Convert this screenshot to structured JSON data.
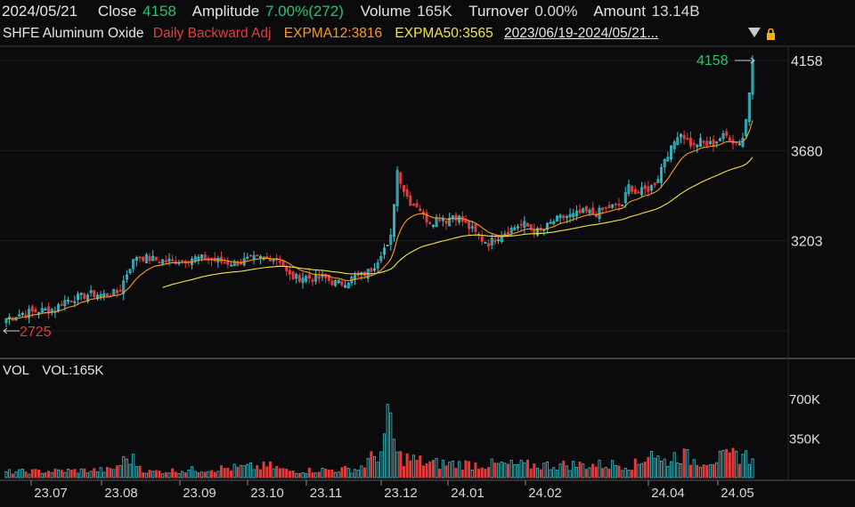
{
  "header": {
    "date": "2024/05/21",
    "close_label": "Close",
    "close_value": "4158",
    "amplitude_label": "Amplitude",
    "amplitude_value": "7.00%(272)",
    "volume_label": "Volume",
    "volume_value": "165K",
    "turnover_label": "Turnover",
    "turnover_value": "0.00%",
    "amount_label": "Amount",
    "amount_value": "13.14B"
  },
  "subheader": {
    "instrument": "SHFE Aluminum Oxide",
    "adjust_mode": "Daily Backward Adj",
    "ema12": "EXPMA12:3816",
    "ema50": "EXPMA50:3565",
    "range": "2023/06/19-2024/05/21..."
  },
  "icons": {
    "dropdown": "triangle-down-icon",
    "lock": "lock-icon"
  },
  "colors": {
    "up": "#3ec6cf",
    "down": "#e53b3b",
    "ema12": "#ff9a1a",
    "ema50": "#f2e640",
    "grid": "#3a3a3a"
  },
  "volume_panel": {
    "title": "VOL",
    "vol_label": "VOL:165K"
  },
  "chart_data": {
    "type": "candlestick",
    "y_ticks": [
      "4158",
      "3680",
      "3203"
    ],
    "vol_ticks": [
      "700K",
      "350K"
    ],
    "x_ticks": [
      "23.07",
      "23.08",
      "23.09",
      "23.10",
      "23.11",
      "23.12",
      "24.01",
      "24.02",
      "24.04",
      "24.05"
    ],
    "high_label": "4158",
    "low_label": "2725",
    "price_range": [
      2725,
      4158
    ],
    "ema12_last": 3816,
    "ema50_last": 3565,
    "close_path": [
      [
        0,
        2790
      ],
      [
        10,
        2820
      ],
      [
        18,
        2830
      ],
      [
        28,
        2840
      ],
      [
        32,
        2880
      ],
      [
        40,
        2900
      ],
      [
        48,
        2920
      ],
      [
        55,
        2915
      ],
      [
        64,
        2930
      ],
      [
        70,
        3060
      ],
      [
        74,
        3120
      ],
      [
        80,
        3110
      ],
      [
        86,
        3100
      ],
      [
        94,
        3095
      ],
      [
        100,
        3100
      ],
      [
        106,
        3110
      ],
      [
        112,
        3110
      ],
      [
        118,
        3100
      ],
      [
        124,
        3090
      ],
      [
        130,
        3080
      ],
      [
        136,
        3100
      ],
      [
        140,
        3105
      ],
      [
        145,
        3110
      ],
      [
        150,
        3115
      ],
      [
        156,
        3100
      ],
      [
        160,
        3020
      ],
      [
        164,
        3005
      ],
      [
        170,
        3010
      ],
      [
        176,
        3000
      ],
      [
        180,
        3010
      ],
      [
        186,
        2980
      ],
      [
        190,
        2975
      ],
      [
        194,
        2990
      ],
      [
        198,
        3010
      ],
      [
        202,
        3020
      ],
      [
        206,
        3040
      ],
      [
        210,
        3080
      ],
      [
        214,
        3160
      ],
      [
        218,
        3170
      ],
      [
        222,
        3580
      ],
      [
        226,
        3470
      ],
      [
        230,
        3400
      ],
      [
        234,
        3390
      ],
      [
        238,
        3320
      ],
      [
        242,
        3300
      ],
      [
        246,
        3330
      ],
      [
        250,
        3310
      ],
      [
        254,
        3340
      ],
      [
        258,
        3320
      ],
      [
        262,
        3280
      ],
      [
        266,
        3250
      ],
      [
        270,
        3210
      ],
      [
        274,
        3190
      ],
      [
        278,
        3215
      ],
      [
        282,
        3240
      ],
      [
        286,
        3260
      ],
      [
        290,
        3280
      ],
      [
        294,
        3290
      ],
      [
        298,
        3270
      ],
      [
        302,
        3250
      ],
      [
        306,
        3265
      ],
      [
        310,
        3300
      ],
      [
        314,
        3320
      ],
      [
        318,
        3330
      ],
      [
        322,
        3335
      ],
      [
        326,
        3350
      ],
      [
        330,
        3355
      ],
      [
        334,
        3345
      ],
      [
        338,
        3360
      ],
      [
        342,
        3380
      ],
      [
        346,
        3385
      ],
      [
        350,
        3395
      ],
      [
        354,
        3500
      ],
      [
        358,
        3450
      ],
      [
        362,
        3470
      ],
      [
        366,
        3480
      ],
      [
        370,
        3530
      ],
      [
        374,
        3640
      ],
      [
        378,
        3690
      ],
      [
        382,
        3780
      ],
      [
        386,
        3750
      ],
      [
        390,
        3700
      ],
      [
        394,
        3730
      ],
      [
        398,
        3710
      ],
      [
        402,
        3720
      ],
      [
        406,
        3750
      ],
      [
        410,
        3760
      ],
      [
        414,
        3720
      ],
      [
        418,
        3730
      ],
      [
        420,
        3820
      ],
      [
        422,
        3980
      ],
      [
        424,
        4158
      ]
    ],
    "volume_envelope": [
      [
        0,
        60
      ],
      [
        60,
        80
      ],
      [
        70,
        220
      ],
      [
        80,
        60
      ],
      [
        150,
        120
      ],
      [
        160,
        70
      ],
      [
        200,
        90
      ],
      [
        214,
        300
      ],
      [
        218,
        680
      ],
      [
        222,
        230
      ],
      [
        240,
        150
      ],
      [
        300,
        130
      ],
      [
        360,
        140
      ],
      [
        366,
        320
      ],
      [
        372,
        160
      ],
      [
        378,
        200
      ],
      [
        382,
        260
      ],
      [
        390,
        180
      ],
      [
        410,
        210
      ],
      [
        418,
        260
      ],
      [
        424,
        165
      ]
    ]
  }
}
